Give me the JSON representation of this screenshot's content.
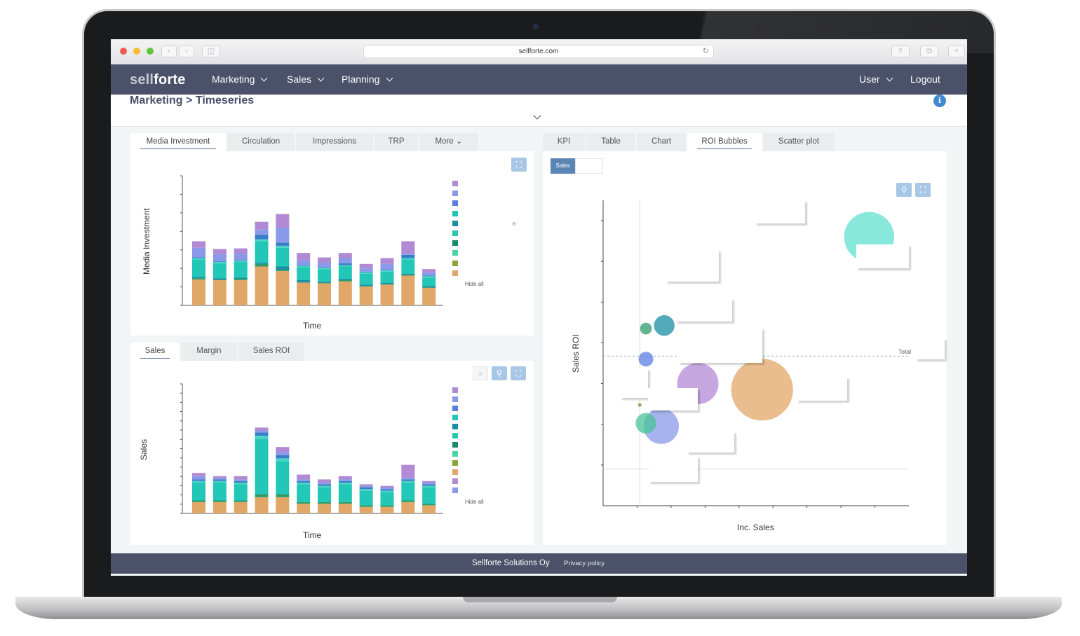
{
  "browser": {
    "url": "sellforte.com"
  },
  "nav": {
    "logo_light": "sell",
    "logo_bold": "forte",
    "items": [
      {
        "label": "Marketing"
      },
      {
        "label": "Sales"
      },
      {
        "label": "Planning"
      }
    ],
    "user_label": "User",
    "logout_label": "Logout"
  },
  "breadcrumb": {
    "section": "Marketing",
    "separator": ">",
    "page": "Timeseries"
  },
  "top_left": {
    "tabs": [
      "Media Investment",
      "Circulation",
      "Impressions",
      "TRP",
      "More"
    ],
    "active_tab": "Media Investment",
    "legend_hide_all": "Hide all",
    "legend_note": "n"
  },
  "bottom_left": {
    "tabs": [
      "Sales",
      "Margin",
      "Sales ROI"
    ],
    "active_tab": "Sales",
    "legend_hide_all": "Hide all"
  },
  "right": {
    "tabs": [
      "KPI",
      "Table",
      "Chart",
      "ROI Bubbles",
      "Scatter plot"
    ],
    "active_tab": "ROI Bubbles",
    "toggle_active": "Sales",
    "reference_label": "Total"
  },
  "footer": {
    "company": "Sellforte Solutions Oy",
    "privacy": "Privacy policy"
  },
  "colors": {
    "nav_bg": "#4a5169",
    "series": [
      "#e1a768",
      "#2e9c6b",
      "#1a8ea3",
      "#22c7b7",
      "#49d4c4",
      "#3a7ec9",
      "#8a9ae8",
      "#b18ad3"
    ]
  },
  "chart_data": [
    {
      "type": "bar",
      "stacked": true,
      "xlabel": "Time",
      "ylabel": "Media Investment",
      "categories": [
        "",
        "",
        "",
        "",
        "",
        "",
        "",
        "",
        "",
        "",
        "",
        ""
      ],
      "series": [
        {
          "values": [
            40,
            39,
            39,
            60,
            53,
            35,
            34,
            37,
            29,
            32,
            46,
            27
          ]
        },
        {
          "values": [
            2,
            1,
            2,
            4,
            2,
            1,
            1,
            2,
            1,
            1,
            1,
            1
          ]
        },
        {
          "values": [
            2,
            2,
            2,
            2,
            5,
            3,
            2,
            2,
            2,
            2,
            2,
            2
          ]
        },
        {
          "values": [
            27,
            23,
            24,
            33,
            29,
            20,
            19,
            19,
            17,
            17,
            22,
            13
          ]
        },
        {
          "values": [
            2,
            2,
            2,
            3,
            3,
            2,
            2,
            2,
            2,
            2,
            2,
            2
          ]
        },
        {
          "values": [
            1,
            1,
            1,
            7,
            5,
            1,
            1,
            3,
            1,
            1,
            5,
            1
          ]
        },
        {
          "values": [
            15,
            11,
            10,
            8,
            23,
            8,
            7,
            8,
            5,
            9,
            2,
            5
          ]
        },
        {
          "values": [
            10,
            8,
            8,
            12,
            21,
            11,
            8,
            8,
            7,
            9,
            19,
            5
          ]
        }
      ]
    },
    {
      "type": "bar",
      "stacked": true,
      "xlabel": "Time",
      "ylabel": "Sales",
      "categories": [
        "",
        "",
        "",
        "",
        "",
        "",
        "",
        "",
        "",
        "",
        "",
        ""
      ],
      "series": [
        {
          "values": [
            7,
            7,
            7,
            10,
            10,
            6,
            6,
            6,
            4,
            4,
            7,
            5
          ]
        },
        {
          "values": [
            1,
            1,
            1,
            2,
            2,
            1,
            1,
            1,
            1,
            1,
            1,
            1
          ]
        },
        {
          "values": [
            0,
            0,
            0,
            0,
            0,
            0,
            0,
            0,
            0,
            0,
            0,
            0
          ]
        },
        {
          "values": [
            11,
            11,
            10,
            34,
            20,
            11,
            9,
            11,
            9,
            8,
            11,
            10
          ]
        },
        {
          "values": [
            1,
            1,
            1,
            2,
            2,
            1,
            1,
            1,
            1,
            1,
            1,
            1
          ]
        },
        {
          "values": [
            1,
            1,
            1,
            2,
            2,
            1,
            1,
            1,
            1,
            1,
            1,
            1
          ]
        },
        {
          "values": [
            2,
            1,
            1,
            1,
            2,
            1,
            1,
            1,
            1,
            1,
            1,
            1
          ]
        },
        {
          "values": [
            2,
            1,
            2,
            2,
            3,
            3,
            2,
            2,
            1,
            1,
            8,
            1
          ]
        }
      ]
    },
    {
      "type": "scatter",
      "bubble": true,
      "xlabel": "Inc. Sales",
      "ylabel": "Sales ROI",
      "xlim": [
        0,
        100
      ],
      "ylim": [
        0,
        100
      ],
      "reference_line_y": 49,
      "reference_label": "Total",
      "points": [
        {
          "x": 14,
          "y": 58,
          "r": 4,
          "color": "#2e9c6b"
        },
        {
          "x": 20,
          "y": 59,
          "r": 7,
          "color": "#1a8ea3"
        },
        {
          "x": 14,
          "y": 48,
          "r": 5,
          "color": "#5b7de0"
        },
        {
          "x": 31,
          "y": 40,
          "r": 14,
          "color": "#b38ad6"
        },
        {
          "x": 52,
          "y": 38,
          "r": 21,
          "color": "#e1a768"
        },
        {
          "x": 19,
          "y": 26,
          "r": 12,
          "color": "#8a9ae8"
        },
        {
          "x": 14,
          "y": 27,
          "r": 7,
          "color": "#49c39a"
        },
        {
          "x": 12,
          "y": 33,
          "r": 1,
          "color": "#7a8a2e"
        },
        {
          "x": 87,
          "y": 88,
          "r": 17,
          "color": "#5fe0cf"
        }
      ]
    }
  ]
}
